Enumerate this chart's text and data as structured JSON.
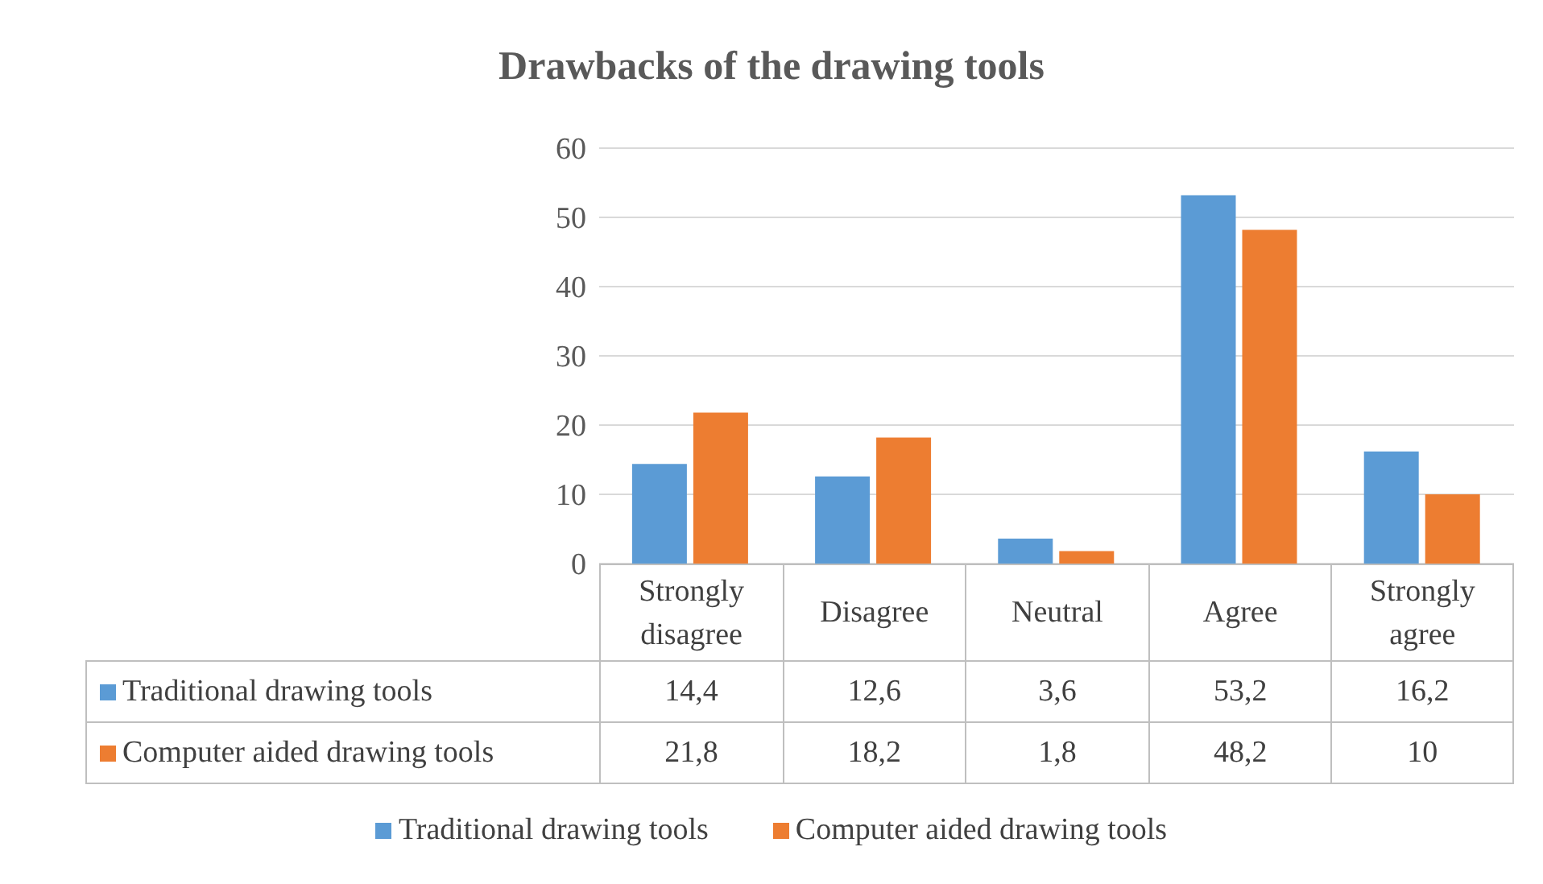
{
  "chart_data": {
    "type": "bar",
    "title": "Drawbacks of the drawing tools",
    "categories": [
      "Strongly disagree",
      "Disagree",
      "Neutral",
      "Agree",
      "Strongly agree"
    ],
    "series": [
      {
        "name": "Traditional drawing tools",
        "color": "#5b9bd5",
        "values": [
          14.4,
          12.6,
          3.6,
          53.2,
          16.2
        ],
        "value_labels": [
          "14,4",
          "12,6",
          "3,6",
          "53,2",
          "16,2"
        ]
      },
      {
        "name": "Computer aided drawing tools",
        "color": "#ed7d31",
        "values": [
          21.8,
          18.2,
          1.8,
          48.2,
          10
        ],
        "value_labels": [
          "21,8",
          "18,2",
          "1,8",
          "48,2",
          "10"
        ]
      }
    ],
    "ylim": [
      0,
      60
    ],
    "yticks": [
      0,
      10,
      20,
      30,
      40,
      50,
      60
    ],
    "grid": "y",
    "legend": "bottom"
  }
}
